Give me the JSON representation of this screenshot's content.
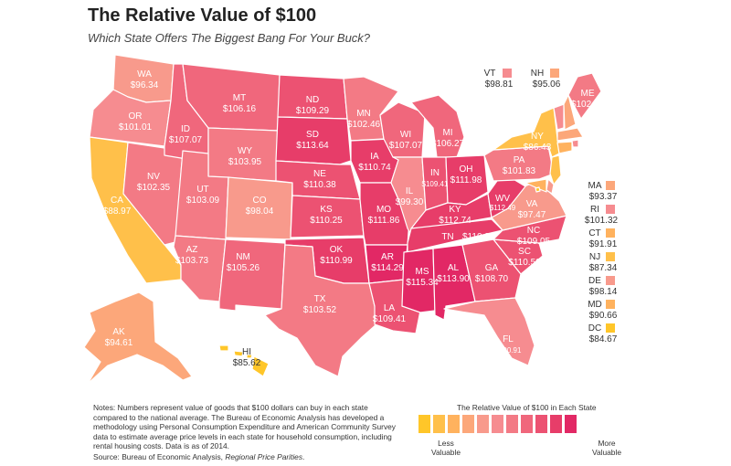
{
  "title": "The Relative Value of $100",
  "subtitle": "Which State Offers The Biggest Bang For Your Buck?",
  "colors": {
    "scale": [
      "#ffc629",
      "#ffc04a",
      "#ffb25e",
      "#fca77a",
      "#f89a8c",
      "#f68c90",
      "#f37a85",
      "#f0677c",
      "#ec5272",
      "#e73d69",
      "#e22865"
    ]
  },
  "states": {
    "WA": {
      "code": "WA",
      "value": "$96.34"
    },
    "OR": {
      "code": "OR",
      "value": "$101.01"
    },
    "CA": {
      "code": "CA",
      "value": "$88.97"
    },
    "NV": {
      "code": "NV",
      "value": "$102.35"
    },
    "ID": {
      "code": "ID",
      "value": "$107.07"
    },
    "MT": {
      "code": "MT",
      "value": "$106.16"
    },
    "WY": {
      "code": "WY",
      "value": "$103.95"
    },
    "UT": {
      "code": "UT",
      "value": "$103.09"
    },
    "AZ": {
      "code": "AZ",
      "value": "$103.73"
    },
    "CO": {
      "code": "CO",
      "value": "$98.04"
    },
    "NM": {
      "code": "NM",
      "value": "$105.26"
    },
    "ND": {
      "code": "ND",
      "value": "$109.29"
    },
    "SD": {
      "code": "SD",
      "value": "$113.64"
    },
    "NE": {
      "code": "NE",
      "value": "$110.38"
    },
    "KS": {
      "code": "KS",
      "value": "$110.25"
    },
    "OK": {
      "code": "OK",
      "value": "$110.99"
    },
    "TX": {
      "code": "TX",
      "value": "$103.52"
    },
    "MN": {
      "code": "MN",
      "value": "$102.46"
    },
    "IA": {
      "code": "IA",
      "value": "$110.74"
    },
    "MO": {
      "code": "MO",
      "value": "$111.86"
    },
    "AR": {
      "code": "AR",
      "value": "$114.29"
    },
    "LA": {
      "code": "LA",
      "value": "$109.41"
    },
    "WI": {
      "code": "WI",
      "value": "$107.07"
    },
    "IL": {
      "code": "IL",
      "value": "$99.30"
    },
    "MI": {
      "code": "MI",
      "value": "$106.27"
    },
    "IN": {
      "code": "IN",
      "value": "$109.41"
    },
    "OH": {
      "code": "OH",
      "value": "$111.98"
    },
    "KY": {
      "code": "KY",
      "value": "$112.74"
    },
    "TN": {
      "code": "TN",
      "value": "$110.86"
    },
    "MS": {
      "code": "MS",
      "value": "$115.34"
    },
    "AL": {
      "code": "AL",
      "value": "$113.90"
    },
    "GA": {
      "code": "GA",
      "value": "$108.70"
    },
    "FL": {
      "code": "FL",
      "value": "$100.91"
    },
    "SC": {
      "code": "SC",
      "value": "$110.50"
    },
    "NC": {
      "code": "NC",
      "value": "$109.05"
    },
    "VA": {
      "code": "VA",
      "value": "$97.47"
    },
    "WV": {
      "code": "WV",
      "value": "$112.49"
    },
    "PA": {
      "code": "PA",
      "value": "$101.83"
    },
    "NY": {
      "code": "NY",
      "value": "$86.43"
    },
    "VT": {
      "code": "VT",
      "value": "$98.81"
    },
    "NH": {
      "code": "NH",
      "value": "$95.06"
    },
    "ME": {
      "code": "ME",
      "value": "$102.99"
    },
    "MA": {
      "code": "MA",
      "value": "$93.37"
    },
    "RI": {
      "code": "RI",
      "value": "$101.32"
    },
    "CT": {
      "code": "CT",
      "value": "$91.91"
    },
    "NJ": {
      "code": "NJ",
      "value": "$87.34"
    },
    "DE": {
      "code": "DE",
      "value": "$98.14"
    },
    "MD": {
      "code": "MD",
      "value": "$90.66"
    },
    "DC": {
      "code": "DC",
      "value": "$84.67"
    },
    "AK": {
      "code": "AK",
      "value": "$94.61"
    },
    "HI": {
      "code": "HI",
      "value": "$85.62"
    }
  },
  "notes": {
    "text": "Notes: Numbers represent value of goods that $100 dollars can buy in each state compared to the national average. The Bureau of Economic Analysis has developed a methodology using Personal Consumption Expenditure and American Community Survey data to estimate average price levels in each state for household consumption, including rental housing costs. Data is as of 2014.",
    "source_prefix": "Source: Bureau of Economic Analysis, ",
    "source_title": "Regional Price Parities",
    "source_suffix": "."
  },
  "legend": {
    "title": "The Relative Value of $100 in Each State",
    "less": "Less",
    "less2": "Valuable",
    "more": "More",
    "more2": "Valuable"
  }
}
